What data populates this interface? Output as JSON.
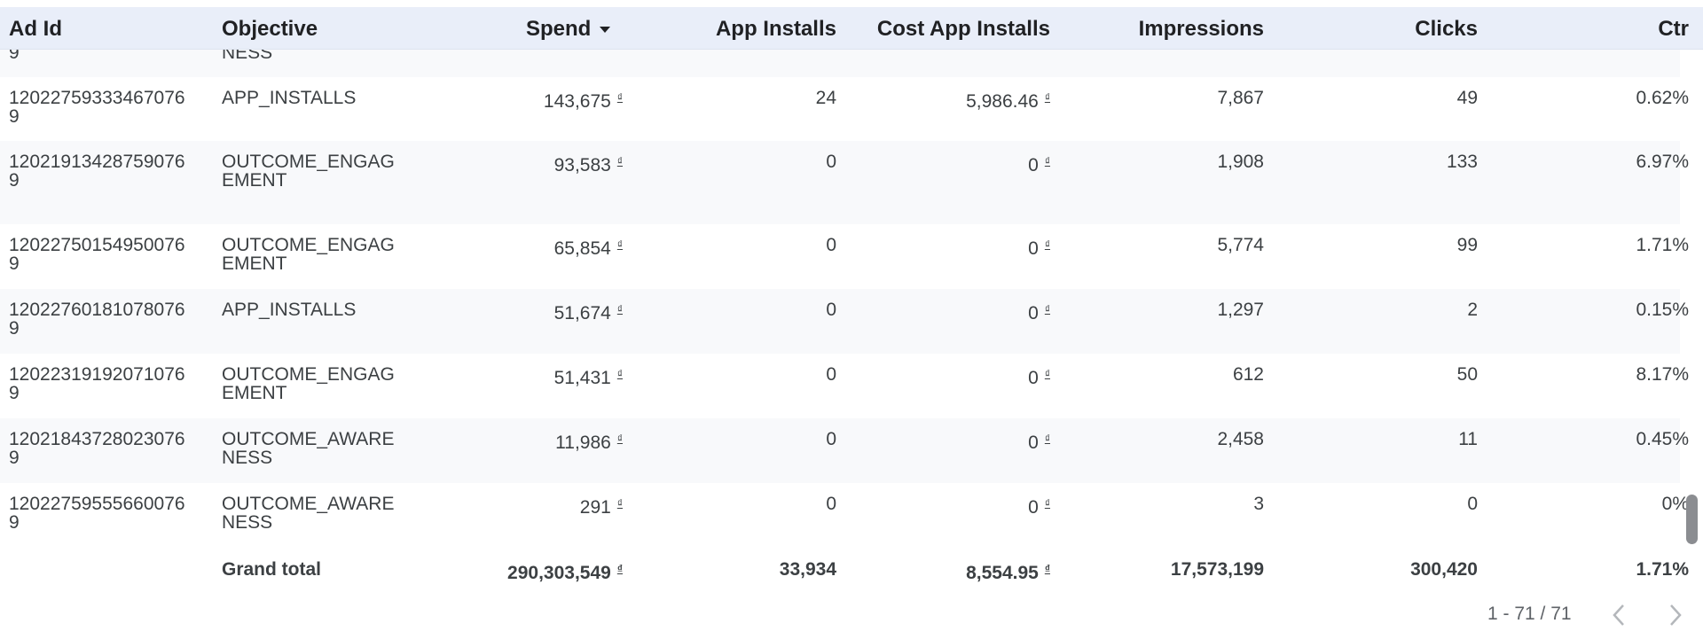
{
  "table": {
    "headers": {
      "ad_id": "Ad Id",
      "objective": "Objective",
      "spend": "Spend",
      "app_installs": "App Installs",
      "cost_app_installs": "Cost App Installs",
      "impressions": "Impressions",
      "clicks": "Clicks",
      "ctr": "Ctr"
    },
    "currency_symbol": "₫",
    "partial_row": {
      "ad_id_tail": "9",
      "objective_tail": "NESS"
    },
    "rows": [
      {
        "ad_id_1": "12022759333467076",
        "ad_id_2": "9",
        "objective_1": "APP_INSTALLS",
        "objective_2": "",
        "spend": "143,675",
        "app_installs": "24",
        "cost_app_installs": "5,986.46",
        "impressions": "7,867",
        "clicks": "49",
        "ctr": "0.62%"
      },
      {
        "ad_id_1": "12021913428759076",
        "ad_id_2": "9",
        "objective_1": "OUTCOME_ENGAG",
        "objective_2": "EMENT",
        "spend": "93,583",
        "app_installs": "0",
        "cost_app_installs": "0",
        "impressions": "1,908",
        "clicks": "133",
        "ctr": "6.97%"
      },
      {
        "ad_id_1": "12022750154950076",
        "ad_id_2": "9",
        "objective_1": "OUTCOME_ENGAG",
        "objective_2": "EMENT",
        "spend": "65,854",
        "app_installs": "0",
        "cost_app_installs": "0",
        "impressions": "5,774",
        "clicks": "99",
        "ctr": "1.71%"
      },
      {
        "ad_id_1": "12022760181078076",
        "ad_id_2": "9",
        "objective_1": "APP_INSTALLS",
        "objective_2": "",
        "spend": "51,674",
        "app_installs": "0",
        "cost_app_installs": "0",
        "impressions": "1,297",
        "clicks": "2",
        "ctr": "0.15%"
      },
      {
        "ad_id_1": "12022319192071076",
        "ad_id_2": "9",
        "objective_1": "OUTCOME_ENGAG",
        "objective_2": "EMENT",
        "spend": "51,431",
        "app_installs": "0",
        "cost_app_installs": "0",
        "impressions": "612",
        "clicks": "50",
        "ctr": "8.17%"
      },
      {
        "ad_id_1": "12021843728023076",
        "ad_id_2": "9",
        "objective_1": "OUTCOME_AWARE",
        "objective_2": "NESS",
        "spend": "11,986",
        "app_installs": "0",
        "cost_app_installs": "0",
        "impressions": "2,458",
        "clicks": "11",
        "ctr": "0.45%"
      },
      {
        "ad_id_1": "12022759555660076",
        "ad_id_2": "9",
        "objective_1": "OUTCOME_AWARE",
        "objective_2": "NESS",
        "spend": "291",
        "app_installs": "0",
        "cost_app_installs": "0",
        "impressions": "3",
        "clicks": "0",
        "ctr": "0%"
      }
    ],
    "grand_total": {
      "label": "Grand total",
      "spend": "290,303,549",
      "app_installs": "33,934",
      "cost_app_installs": "8,554.95",
      "impressions": "17,573,199",
      "clicks": "300,420",
      "ctr": "1.71%"
    }
  },
  "pagination": {
    "range_text": "1 - 71 / 71"
  },
  "icons": {
    "sort": "sort-descending-icon",
    "prev": "chevron-left-icon",
    "next": "chevron-right-icon"
  },
  "colors": {
    "header_bg": "#e9eef9",
    "row_alt_bg": "#f8f9fb",
    "scroll_thumb": "#8b8d91"
  }
}
